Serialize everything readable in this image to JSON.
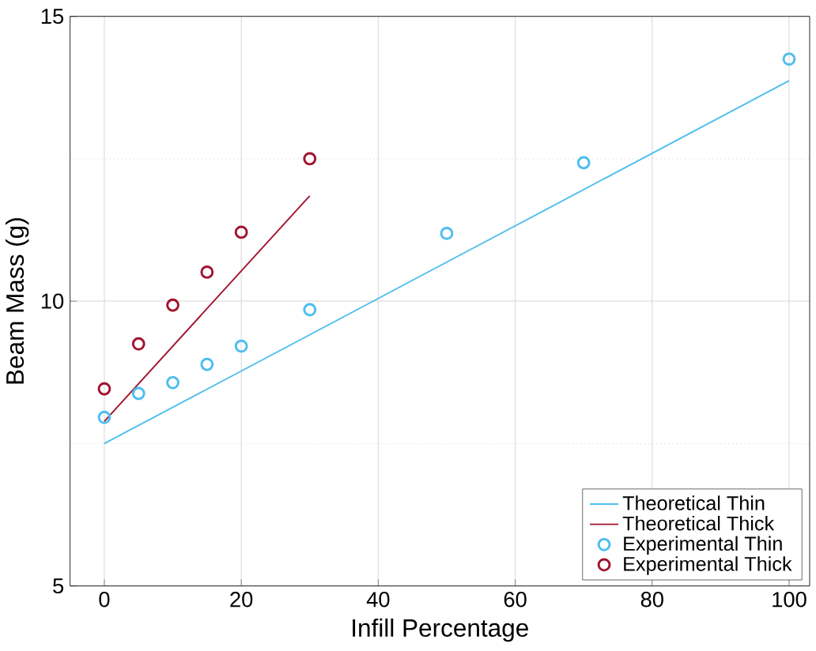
{
  "chart_data": {
    "type": "line",
    "xlabel": "Infill Percentage",
    "ylabel": "Beam Mass (g)",
    "xlim": [
      -5,
      103
    ],
    "ylim": [
      5,
      15
    ],
    "xticks": [
      0,
      20,
      40,
      60,
      80,
      100
    ],
    "yticks": [
      5,
      {
        "value": 7.5,
        "label": null
      },
      10,
      {
        "value": 12.5,
        "label": null
      },
      15
    ],
    "grid": true,
    "legend": "bottom right",
    "series": [
      {
        "name": "Theoretical Thin",
        "color": "#4dbeee",
        "x": [
          0,
          100
        ],
        "values": [
          7.5,
          13.87
        ]
      },
      {
        "name": "Theoretical Thick",
        "color": "#a2142f",
        "x": [
          0,
          30
        ],
        "values": [
          7.89,
          11.85
        ]
      },
      {
        "name": "Experimental Thin",
        "type": "scatter",
        "marker": "circle",
        "color": "#4dbeee",
        "x": [
          0,
          5,
          10,
          15,
          20,
          30,
          50,
          70,
          100
        ],
        "values": [
          7.96,
          8.38,
          8.57,
          8.89,
          9.21,
          9.85,
          11.19,
          12.43,
          14.25
        ]
      },
      {
        "name": "Experimental Thick",
        "type": "scatter",
        "marker": "circle",
        "color": "#a2142f",
        "x": [
          0,
          5,
          10,
          15,
          20,
          30
        ],
        "values": [
          8.46,
          9.25,
          9.93,
          10.51,
          11.21,
          12.5
        ]
      }
    ]
  }
}
